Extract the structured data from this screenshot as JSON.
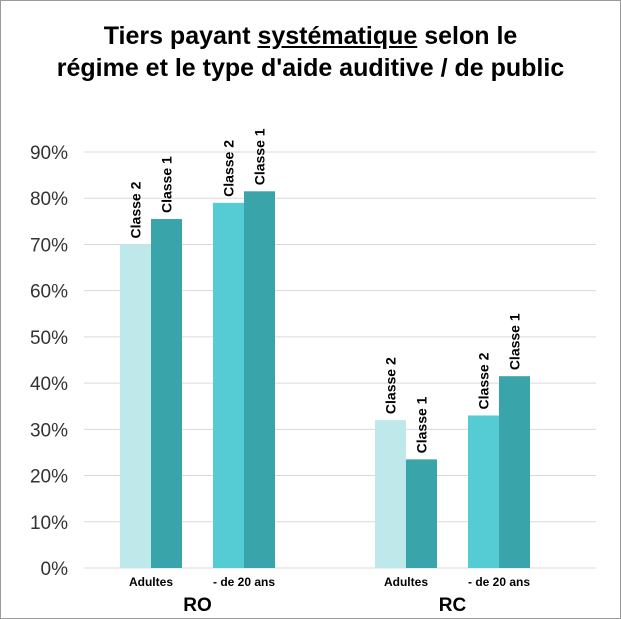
{
  "chart_data": {
    "type": "bar",
    "title_parts": [
      "Tiers payant ",
      "systématique",
      " selon le",
      "régime et le type d'aide auditive / de public"
    ],
    "y_ticks": [
      "0%",
      "10%",
      "20%",
      "30%",
      "40%",
      "50%",
      "60%",
      "70%",
      "80%",
      "90%"
    ],
    "ylim": [
      0,
      90
    ],
    "grid": true,
    "groups": [
      {
        "label": "RO",
        "categories": [
          {
            "label": "Adultes",
            "bars": [
              {
                "name": "Classe 2",
                "value": 70
              },
              {
                "name": "Classe 1",
                "value": 75.5
              }
            ]
          },
          {
            "label": "- de 20 ans",
            "bars": [
              {
                "name": "Classe 2",
                "value": 79
              },
              {
                "name": "Classe 1",
                "value": 81.5
              }
            ]
          }
        ]
      },
      {
        "label": "RC",
        "categories": [
          {
            "label": "Adultes",
            "bars": [
              {
                "name": "Classe 2",
                "value": 32
              },
              {
                "name": "Classe 1",
                "value": 23.5
              }
            ]
          },
          {
            "label": "- de 20 ans",
            "bars": [
              {
                "name": "Classe 2",
                "value": 33
              },
              {
                "name": "Classe 1",
                "value": 41.5
              }
            ]
          }
        ]
      }
    ],
    "colors": {
      "adultes_classe2": "#bfe8ea",
      "adultes_classe1": "#3aa4ab",
      "jeunes_classe2": "#55cbd3",
      "jeunes_classe1": "#3aa4ab",
      "grid": "#d9d9d9"
    }
  }
}
